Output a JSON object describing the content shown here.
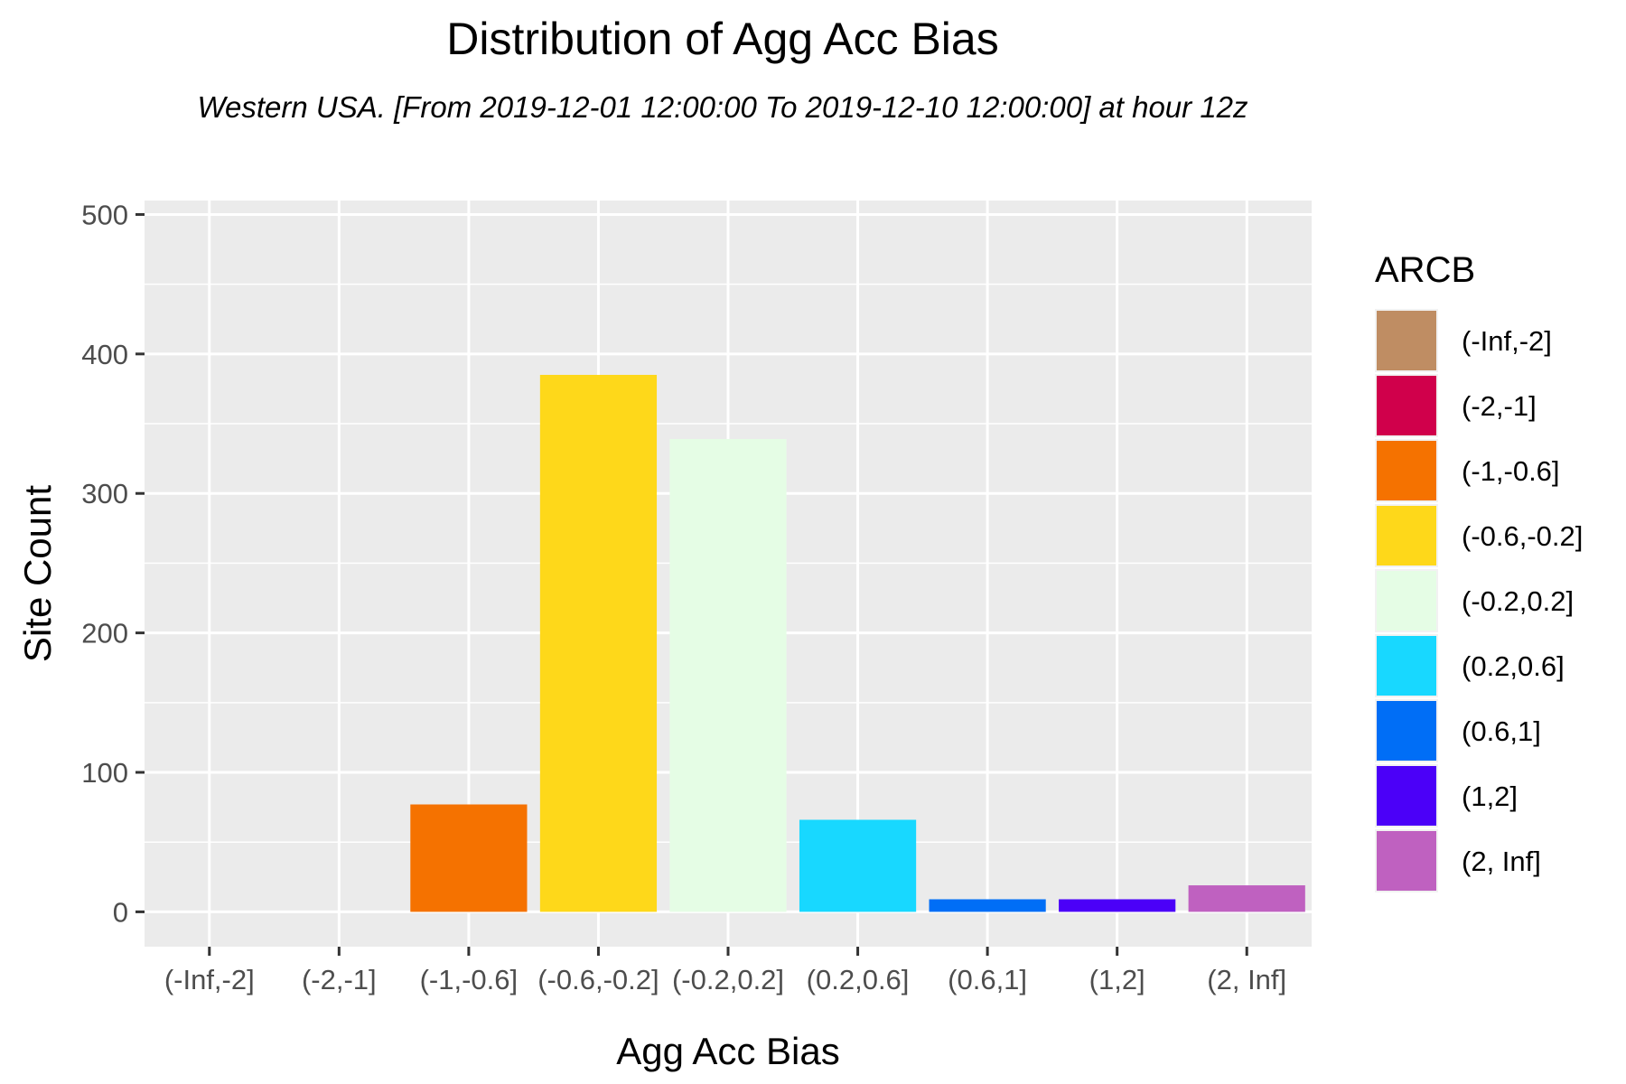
{
  "chart_data": {
    "type": "bar",
    "title": "Distribution of Agg Acc Bias",
    "subtitle": "Western USA.  [From 2019-12-01 12:00:00 To 2019-12-10 12:00:00] at hour 12z",
    "xlabel": "Agg Acc Bias",
    "ylabel": "Site Count",
    "ylim": [
      -25,
      510
    ],
    "yticks": [
      0,
      100,
      200,
      300,
      400,
      500
    ],
    "grid": true,
    "legend_position": "right",
    "legend_title": "ARCB",
    "categories": [
      "(-Inf,-2]",
      "(-2,-1]",
      "(-1,-0.6]",
      "(-0.6,-0.2]",
      "(-0.2,0.2]",
      "(0.2,0.6]",
      "(0.6,1]",
      "(1,2]",
      "(2, Inf]"
    ],
    "values": [
      0,
      0,
      77,
      385,
      339,
      66,
      9,
      9,
      19
    ],
    "colors": [
      "#bf8d63",
      "#d0004b",
      "#f57200",
      "#fed81a",
      "#e5fde5",
      "#18d8ff",
      "#006ef6",
      "#4b00f8",
      "#bf61c0"
    ]
  }
}
